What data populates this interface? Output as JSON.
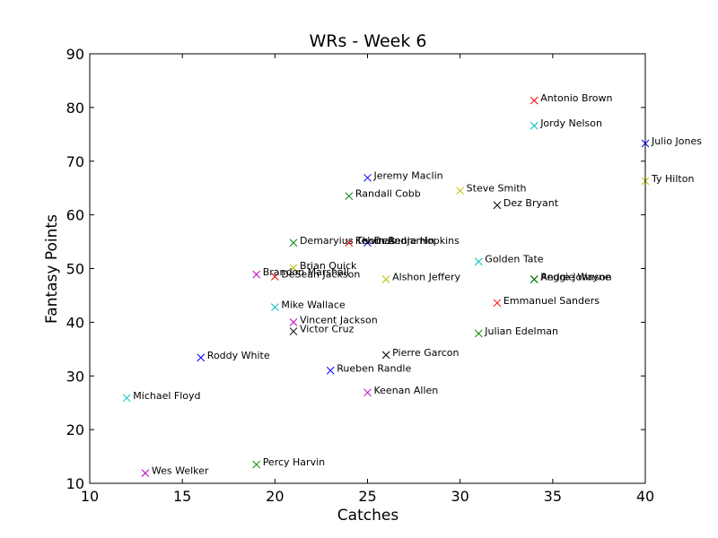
{
  "chart_data": {
    "type": "scatter",
    "title": "WRs - Week 6",
    "xlabel": "Catches",
    "ylabel": "Fantasy Points",
    "xlim": [
      10,
      40
    ],
    "ylim": [
      10,
      90
    ],
    "xticks": [
      "10",
      "15",
      "20",
      "25",
      "30",
      "35",
      "40"
    ],
    "yticks": [
      "10",
      "20",
      "30",
      "40",
      "50",
      "60",
      "70",
      "80",
      "90"
    ],
    "grid": false,
    "marker": "x",
    "points": [
      {
        "label": "Antonio Brown",
        "x": 34,
        "y": 81.3,
        "color": "#ff0000"
      },
      {
        "label": "Jordy Nelson",
        "x": 34,
        "y": 76.6,
        "color": "#00bfbf"
      },
      {
        "label": "Julio Jones",
        "x": 40,
        "y": 73.3,
        "color": "#0000ff"
      },
      {
        "label": "Ty Hilton",
        "x": 40,
        "y": 66.3,
        "color": "#bfbf00"
      },
      {
        "label": "Jeremy Maclin",
        "x": 25,
        "y": 66.9,
        "color": "#0000ff"
      },
      {
        "label": "Steve Smith",
        "x": 30,
        "y": 64.5,
        "color": "#bfbf00"
      },
      {
        "label": "Randall Cobb",
        "x": 24,
        "y": 63.5,
        "color": "#008000"
      },
      {
        "label": "Dez Bryant",
        "x": 32,
        "y": 61.8,
        "color": "#000000"
      },
      {
        "label": "Demaryius Thomas",
        "x": 21,
        "y": 54.8,
        "color": "#008000"
      },
      {
        "label": "Kelvin Benjamin",
        "x": 24,
        "y": 54.8,
        "color": "#ff0000"
      },
      {
        "label": "DeAndre Hopkins",
        "x": 25,
        "y": 54.8,
        "color": "#0000ff"
      },
      {
        "label": "Golden Tate",
        "x": 31,
        "y": 51.3,
        "color": "#00bfbf"
      },
      {
        "label": "Brian Quick",
        "x": 21,
        "y": 50.1,
        "color": "#bfbf00"
      },
      {
        "label": "Brandon Marshall",
        "x": 19,
        "y": 48.9,
        "color": "#bf00bf"
      },
      {
        "label": "DeSean Jackson",
        "x": 20,
        "y": 48.5,
        "color": "#ff0000"
      },
      {
        "label": "Alshon Jeffery",
        "x": 26,
        "y": 48.0,
        "color": "#bfbf00"
      },
      {
        "label": "Reggie Wayne",
        "x": 34,
        "y": 48.0,
        "color": "#000000"
      },
      {
        "label": "Andre Johnson",
        "x": 34,
        "y": 48.0,
        "color": "#008000"
      },
      {
        "label": "Emmanuel Sanders",
        "x": 32,
        "y": 43.6,
        "color": "#ff0000"
      },
      {
        "label": "Mike Wallace",
        "x": 20,
        "y": 42.8,
        "color": "#00bfbf"
      },
      {
        "label": "Vincent Jackson",
        "x": 21,
        "y": 40.0,
        "color": "#bf00bf"
      },
      {
        "label": "Victor Cruz",
        "x": 21,
        "y": 38.3,
        "color": "#000000"
      },
      {
        "label": "Julian Edelman",
        "x": 31,
        "y": 37.9,
        "color": "#008000"
      },
      {
        "label": "Pierre Garcon",
        "x": 26,
        "y": 33.9,
        "color": "#000000"
      },
      {
        "label": "Roddy White",
        "x": 16,
        "y": 33.4,
        "color": "#0000ff"
      },
      {
        "label": "Rueben Randle",
        "x": 23,
        "y": 31.0,
        "color": "#0000ff"
      },
      {
        "label": "Keenan Allen",
        "x": 25,
        "y": 26.9,
        "color": "#bf00bf"
      },
      {
        "label": "Michael Floyd",
        "x": 12,
        "y": 25.9,
        "color": "#00bfbf"
      },
      {
        "label": "Percy Harvin",
        "x": 19,
        "y": 13.5,
        "color": "#008000"
      },
      {
        "label": "Wes Welker",
        "x": 13,
        "y": 11.9,
        "color": "#bf00bf"
      }
    ]
  }
}
